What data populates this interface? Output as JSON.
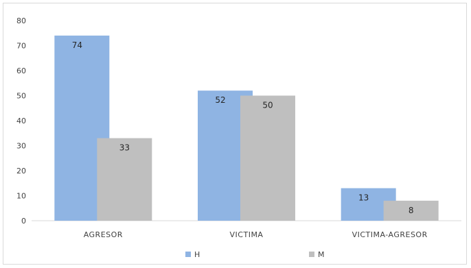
{
  "chart_data": {
    "type": "bar",
    "categories": [
      "AGRESOR",
      "VICTIMA",
      "VICTIMA-AGRESOR"
    ],
    "series": [
      {
        "name": "H",
        "values": [
          74,
          52,
          13
        ],
        "color": "#8fb4e3"
      },
      {
        "name": "M",
        "values": [
          33,
          50,
          8
        ],
        "color": "#bfbfbf"
      }
    ],
    "data_labels": [
      [
        "74",
        "52",
        "13"
      ],
      [
        "33",
        "50",
        "8"
      ]
    ],
    "ylim": [
      0,
      80
    ],
    "yticks": [
      0,
      10,
      20,
      30,
      40,
      50,
      60,
      70,
      80
    ],
    "grid": false,
    "legend": "bottom",
    "title": "",
    "xlabel": "",
    "ylabel": ""
  }
}
